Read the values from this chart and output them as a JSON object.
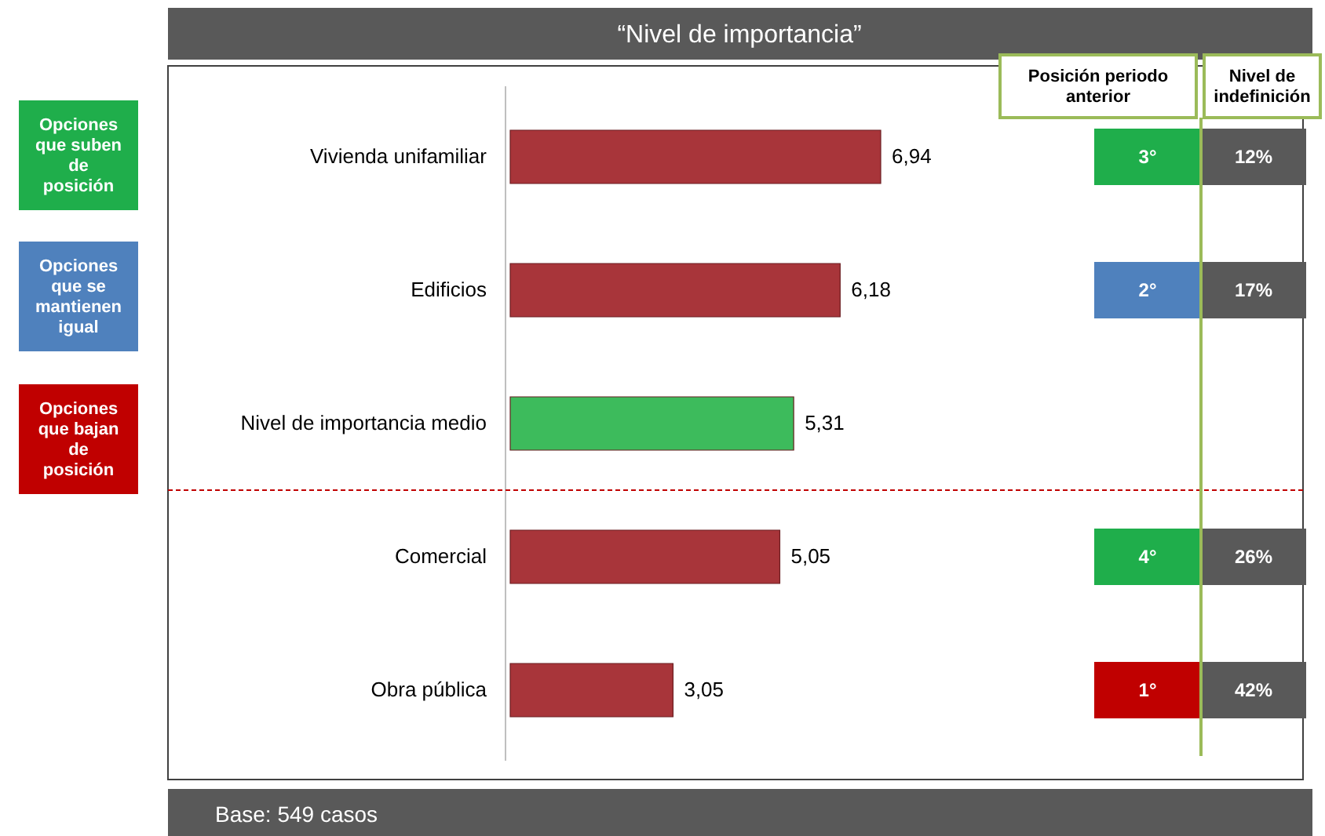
{
  "chart_data": {
    "type": "bar",
    "orientation": "horizontal",
    "title": "“Nivel de importancia”",
    "categories": [
      "Vivienda unifamiliar",
      "Edificios",
      "Nivel de importancia medio",
      "Comercial",
      "Obra pública"
    ],
    "values": [
      6.94,
      6.18,
      5.31,
      5.05,
      3.05
    ],
    "colors": [
      "#a8353a",
      "#a8353a",
      "#3dbb5c",
      "#a8353a",
      "#a8353a"
    ],
    "value_labels": [
      "6,94",
      "6,18",
      "5,31",
      "5,05",
      "3,05"
    ],
    "ref_lines": [
      {
        "axis": "y",
        "value": "Nivel de importancia medio",
        "color": "#c00000",
        "line_style": "dashed"
      }
    ],
    "annotations": [
      "Opciones que suben de posición",
      "Opciones que se mantienen igual",
      "Opciones que bajan de posición",
      "Posición periodo anterior",
      "Nivel de indefinición",
      "Base: 549 casos",
      "3°",
      "2°",
      "4°",
      "1°",
      "12%",
      "17%",
      "26%",
      "42%"
    ]
  }
}
